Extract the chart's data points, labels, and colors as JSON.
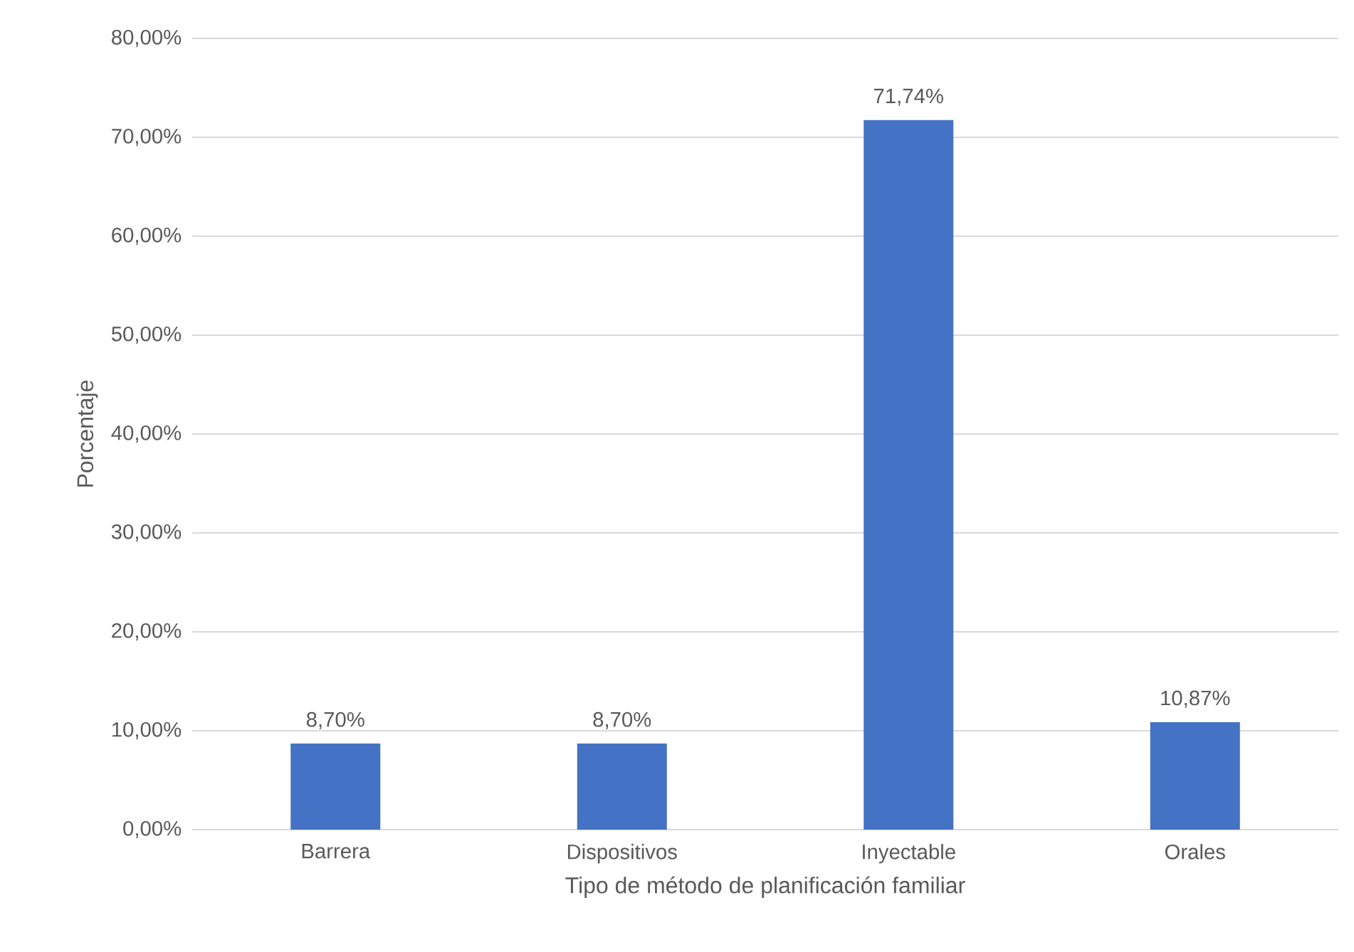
{
  "chart_data": {
    "type": "bar",
    "xlabel": "Tipo de método de planificación familiar",
    "ylabel": "Porcentaje",
    "categories": [
      "Barrera",
      "Dispositivos",
      "Inyectable",
      "Orales"
    ],
    "values": [
      8.7,
      8.7,
      71.74,
      10.87
    ],
    "value_labels": [
      "8,70%",
      "8,70%",
      "71,74%",
      "10,87%"
    ],
    "color": "#4472c4",
    "ylim": [
      0,
      80
    ],
    "yticks": [
      {
        "value": 0,
        "label": "0,00%"
      },
      {
        "value": 10,
        "label": "10,00%"
      },
      {
        "value": 20,
        "label": "20,00%"
      },
      {
        "value": 30,
        "label": "30,00%"
      },
      {
        "value": 40,
        "label": "40,00%"
      },
      {
        "value": 50,
        "label": "50,00%"
      },
      {
        "value": 60,
        "label": "60,00%"
      },
      {
        "value": 70,
        "label": "70,00%"
      },
      {
        "value": 80,
        "label": "80,00%"
      }
    ],
    "grid": "y"
  }
}
